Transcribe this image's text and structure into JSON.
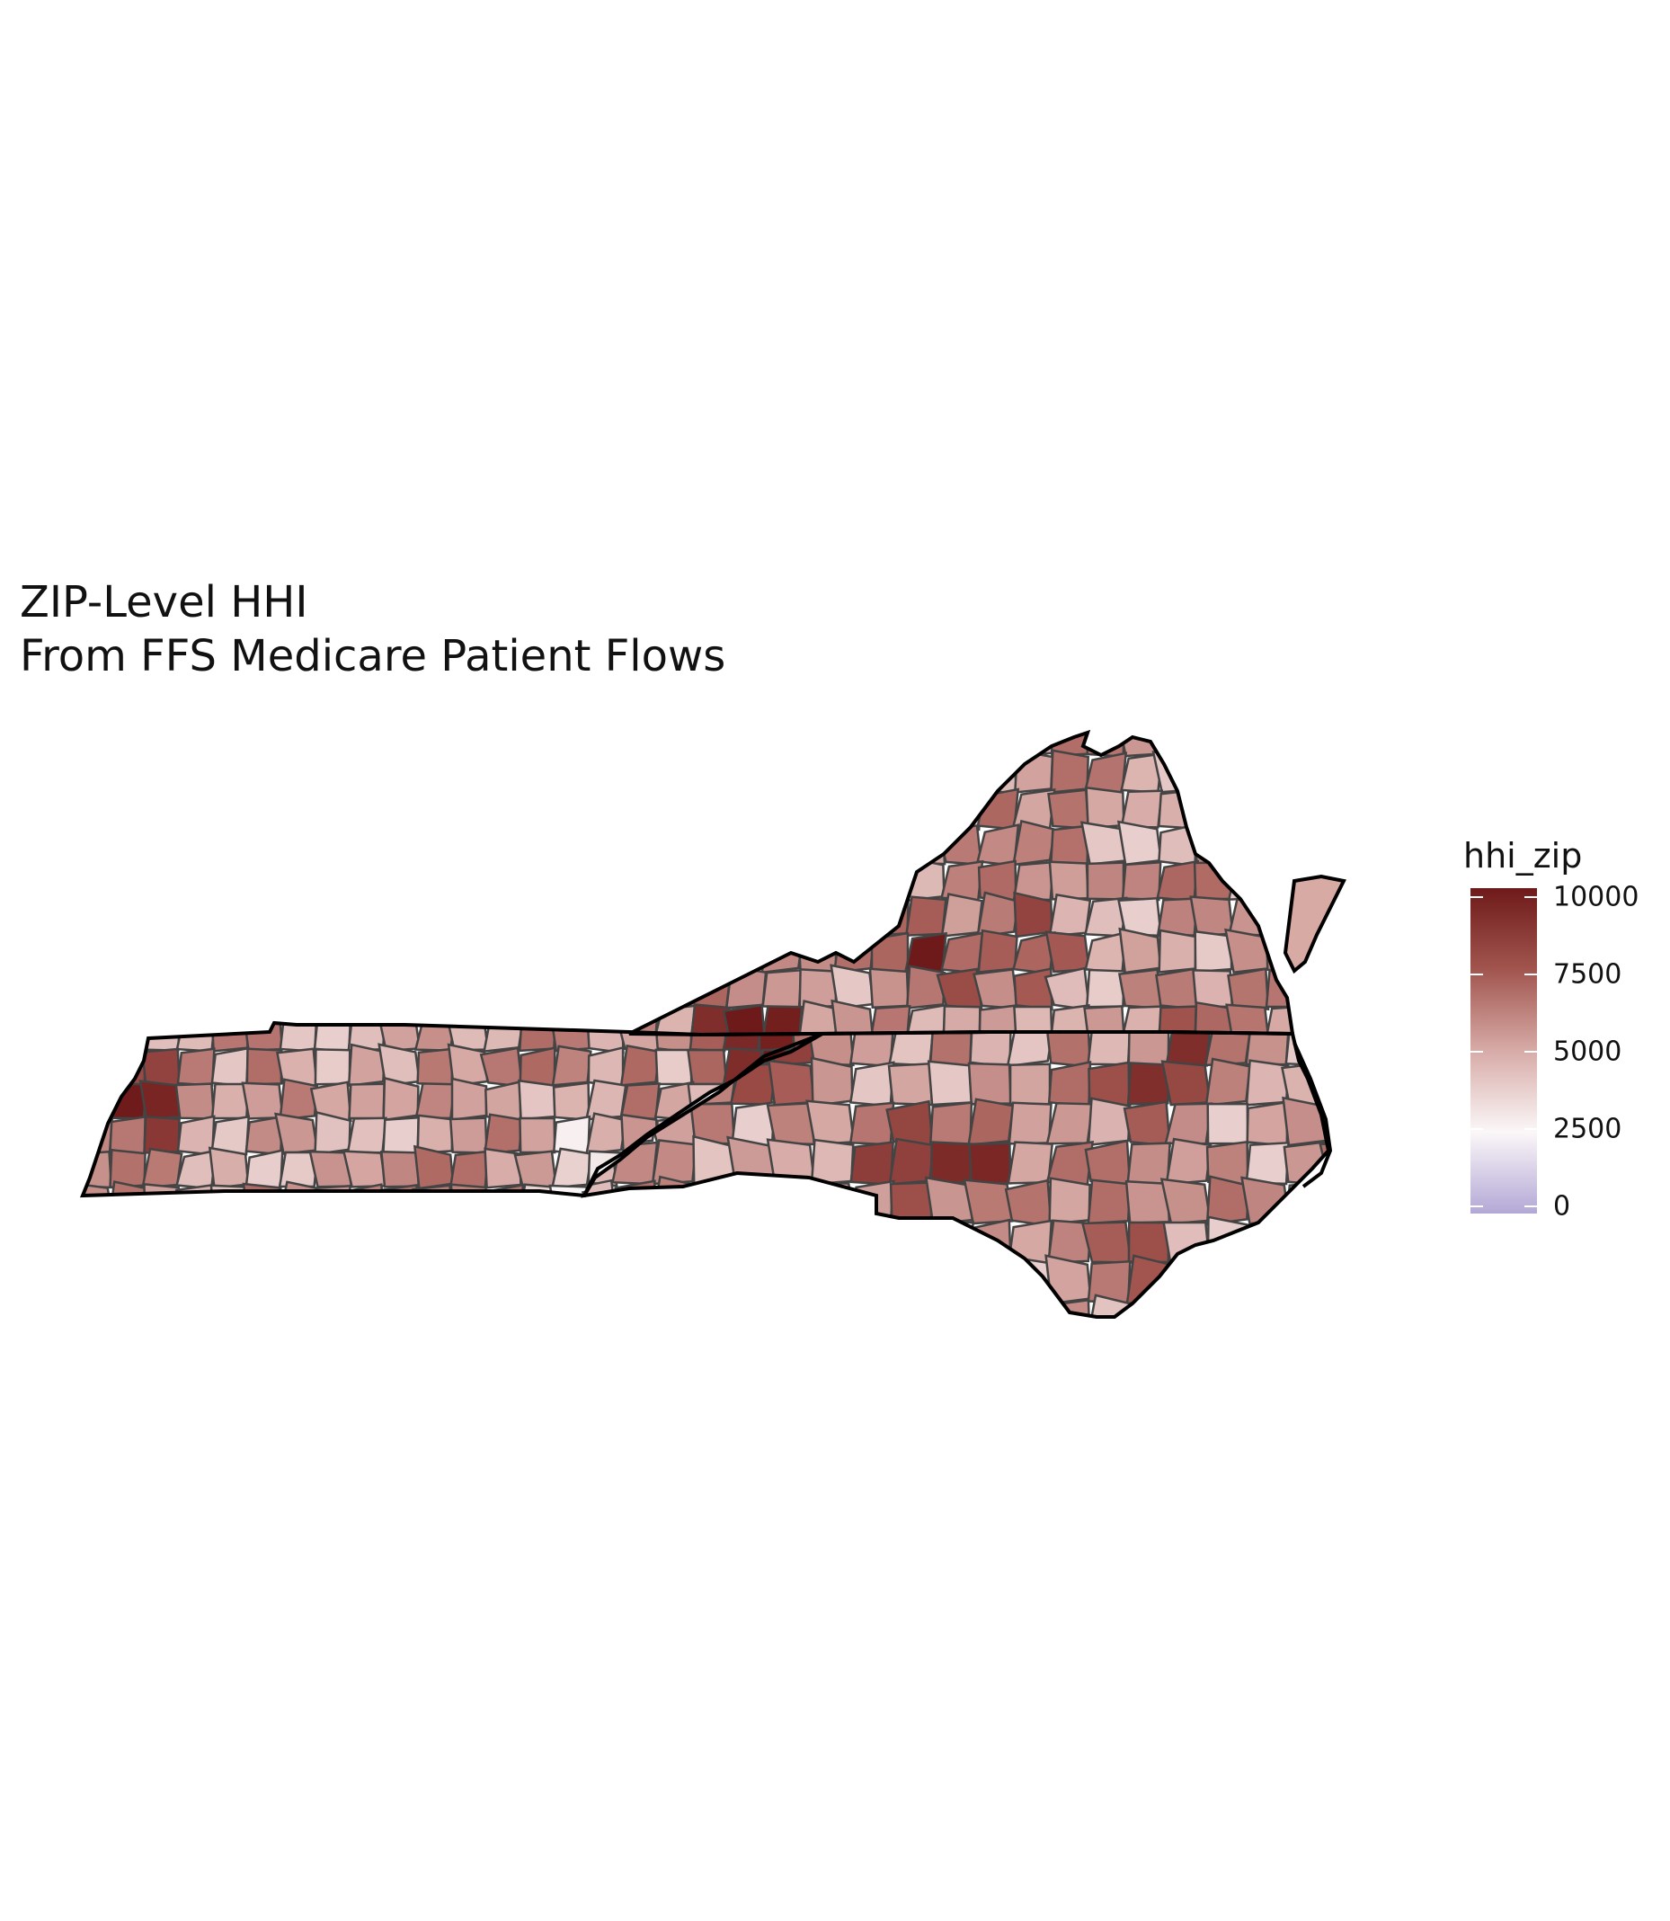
{
  "title": {
    "line1": "ZIP-Level HHI",
    "line2": "From FFS Medicare Patient Flows"
  },
  "legend": {
    "title": "hhi_zip",
    "ticks": [
      {
        "label": "10000",
        "value": 10000
      },
      {
        "label": "7500",
        "value": 7500
      },
      {
        "label": "5000",
        "value": 5000
      },
      {
        "label": "2500",
        "value": 2500
      },
      {
        "label": "0",
        "value": 0
      }
    ],
    "colors": {
      "high": "#6e1a1a",
      "mid_high": "#a2554f",
      "mid": "#d7aba7",
      "low_mid": "#fbf7f8",
      "low": "#b3a8d6"
    }
  },
  "map": {
    "regions": [
      "Virginia",
      "North Carolina",
      "Tennessee"
    ],
    "outline_color": "#000000",
    "county_border_color": "#444444"
  }
}
